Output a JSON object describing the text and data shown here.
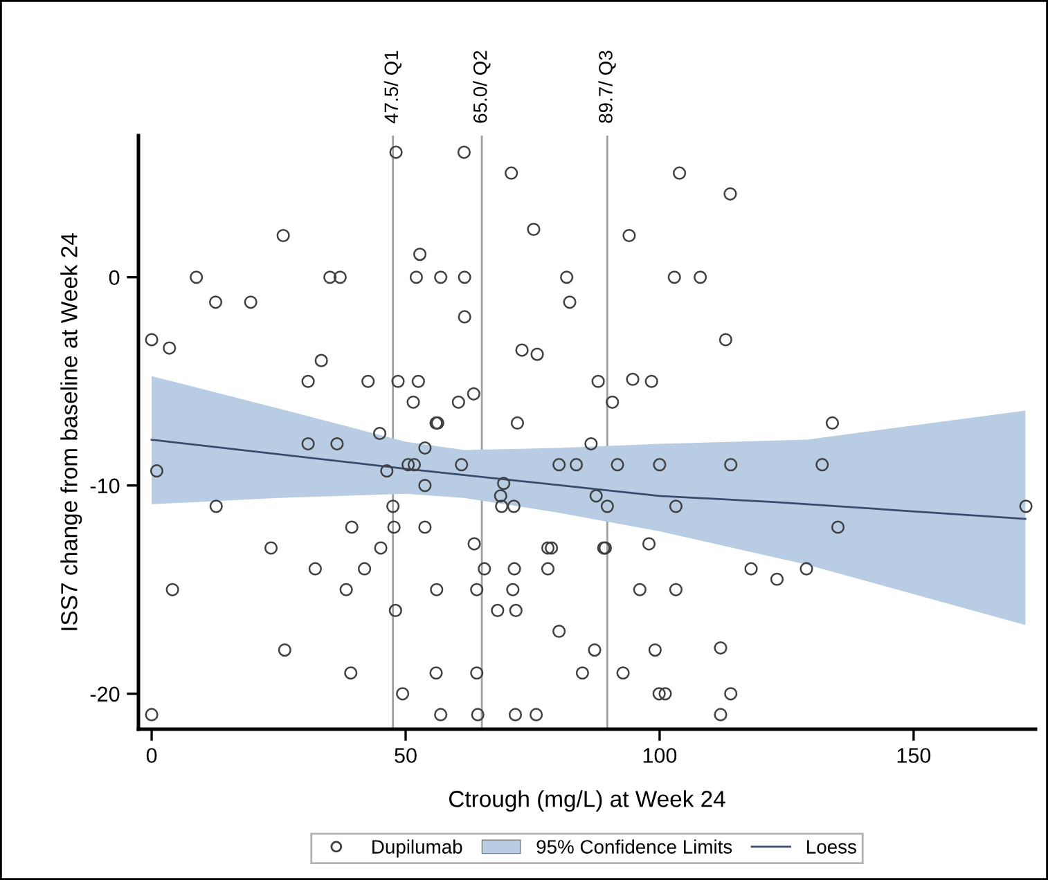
{
  "chart_data": {
    "type": "scatter",
    "xlabel": "Ctrough (mg/L) at Week 24",
    "ylabel": "ISS7 change from baseline at Week 24",
    "xlim": [
      -2.6,
      174
    ],
    "ylim": [
      -21.7,
      6.8
    ],
    "xticks": [
      0,
      50,
      100,
      150
    ],
    "yticks": [
      -20,
      -10,
      0
    ],
    "grid": false,
    "legend": "bottom",
    "marker": "circle",
    "ref_lines": [
      {
        "axis": "x",
        "value": 47.5,
        "label": "47.5/ Q1",
        "color": "#a0a0a0"
      },
      {
        "axis": "x",
        "value": 65.0,
        "label": "65.0/ Q2",
        "color": "#a0a0a0"
      },
      {
        "axis": "x",
        "value": 89.7,
        "label": "89.7/ Q3",
        "color": "#a0a0a0"
      }
    ],
    "series": [
      {
        "name": "Dupilumab",
        "color": "#404040",
        "x": [
          48.1,
          61.5,
          25.9,
          52.8,
          8.8,
          35.1,
          37.1,
          52.1,
          56.9,
          61.6,
          12.6,
          19.5,
          61.6,
          0,
          3.5,
          33.4,
          30.8,
          42.6,
          48.5,
          52.5,
          63.4,
          51.5,
          60.4,
          56.0,
          56.3,
          44.9,
          30.8,
          36.5,
          53.8,
          1.0,
          46.3,
          50.5,
          51.7,
          61.0,
          53.8,
          12.7,
          47.5,
          39.4,
          47.7,
          53.8,
          63.5,
          23.5,
          45.1,
          32.2,
          41.9,
          4.1,
          38.3,
          56.1,
          64.0,
          48.0,
          26.2,
          39.2,
          56.0,
          64.0,
          49.4,
          0,
          56.9,
          64.2,
          70.8,
          103.9,
          113.9,
          75.2,
          94.0,
          81.7,
          102.9,
          108.0,
          82.3,
          113.0,
          72.9,
          75.9,
          87.9,
          94.7,
          98.4,
          90.7,
          72.0,
          86.5,
          80.2,
          83.6,
          91.7,
          100.0,
          114.0,
          69.3,
          68.7,
          68.9,
          71.3,
          87.5,
          89.7,
          103.2,
          78.0,
          78.7,
          89.0,
          89.3,
          97.9,
          65.5,
          71.4,
          78.0,
          118.0,
          123.1,
          128.9,
          71.1,
          96.1,
          103.2,
          68.1,
          71.7,
          80.2,
          87.2,
          99.1,
          112.0,
          84.8,
          92.8,
          99.9,
          101.1,
          114.0,
          71.6,
          75.7,
          112.0,
          134.0,
          132.0,
          135.1,
          172.1
        ],
        "values": [
          6.0,
          6.0,
          2.0,
          1.1,
          0,
          0,
          0,
          0,
          0,
          0,
          -1.2,
          -1.2,
          -1.9,
          -3.0,
          -3.4,
          -4.0,
          -5.0,
          -5.0,
          -5.0,
          -5.0,
          -5.6,
          -6.0,
          -6.0,
          -7.0,
          -7.0,
          -7.5,
          -8.0,
          -8.0,
          -8.2,
          -9.3,
          -9.3,
          -9.0,
          -9.0,
          -9.0,
          -10.0,
          -11.0,
          -11.0,
          -12.0,
          -12.0,
          -12.0,
          -12.8,
          -13.0,
          -13.0,
          -14.0,
          -14.0,
          -15.0,
          -15.0,
          -15.0,
          -15.0,
          -16.0,
          -17.9,
          -19.0,
          -19.0,
          -19.0,
          -20.0,
          -21.0,
          -21.0,
          -21.0,
          5.0,
          5.0,
          4.0,
          2.3,
          2.0,
          0,
          0,
          0,
          -1.2,
          -3.0,
          -3.5,
          -3.7,
          -5.0,
          -4.9,
          -5.0,
          -6.0,
          -7.0,
          -8.0,
          -9.0,
          -9.0,
          -9.0,
          -9.0,
          -9.0,
          -9.9,
          -10.5,
          -11.0,
          -11.0,
          -10.5,
          -11.0,
          -11.0,
          -13.0,
          -13.0,
          -13.0,
          -13.0,
          -12.8,
          -14.0,
          -14.0,
          -14.0,
          -14.0,
          -14.5,
          -14.0,
          -15.0,
          -15.0,
          -15.0,
          -16.0,
          -16.0,
          -17.0,
          -17.9,
          -17.9,
          -17.8,
          -19.0,
          -19.0,
          -20.0,
          -20.0,
          -20.0,
          -21.0,
          -21.0,
          -21.0,
          -7.0,
          -9.0,
          -12.0,
          -11.0
        ]
      },
      {
        "name": "95% Confidence Limits",
        "type": "area",
        "color": "#b8cce4",
        "x": [
          0,
          25,
          50,
          61.5,
          80,
          100,
          129,
          172
        ],
        "values": [
          null,
          null,
          null,
          null,
          null,
          null,
          null,
          null
        ],
        "lower": [
          -10.9,
          -10.6,
          -10.4,
          -10.6,
          -11.3,
          -12.2,
          -13.8,
          -16.7
        ],
        "upper": [
          -4.75,
          -6.3,
          -7.9,
          -8.3,
          -8.2,
          -8.0,
          -7.8,
          -6.4
        ]
      },
      {
        "name": "Loess",
        "type": "line",
        "color": "#3a4a6b",
        "line_style": "solid",
        "marker": "none",
        "x": [
          0,
          50,
          100,
          123,
          172
        ],
        "values": [
          -7.8,
          -9.2,
          -10.5,
          -10.8,
          -11.6
        ]
      }
    ]
  }
}
